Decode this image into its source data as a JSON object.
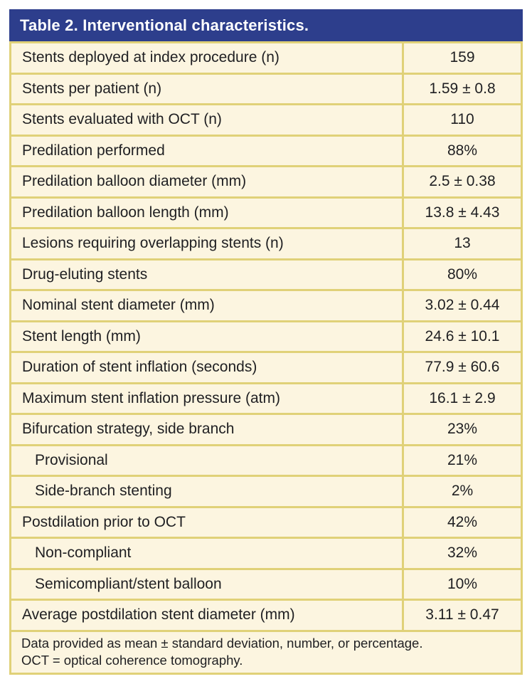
{
  "table": {
    "title": "Table 2. Interventional characteristics.",
    "rows": [
      {
        "label": "Stents deployed at index procedure (n)",
        "value": "159",
        "indent": false
      },
      {
        "label": "Stents per patient (n)",
        "value": "1.59 ± 0.8",
        "indent": false
      },
      {
        "label": "Stents evaluated with OCT (n)",
        "value": "110",
        "indent": false
      },
      {
        "label": "Predilation performed",
        "value": "88%",
        "indent": false
      },
      {
        "label": "Predilation balloon diameter (mm)",
        "value": "2.5 ± 0.38",
        "indent": false
      },
      {
        "label": "Predilation balloon length (mm)",
        "value": "13.8 ± 4.43",
        "indent": false
      },
      {
        "label": "Lesions requiring overlapping stents (n)",
        "value": "13",
        "indent": false
      },
      {
        "label": "Drug-eluting stents",
        "value": "80%",
        "indent": false
      },
      {
        "label": "Nominal stent diameter (mm)",
        "value": "3.02 ± 0.44",
        "indent": false
      },
      {
        "label": "Stent length (mm)",
        "value": "24.6 ± 10.1",
        "indent": false
      },
      {
        "label": "Duration of stent inflation (seconds)",
        "value": "77.9 ± 60.6",
        "indent": false
      },
      {
        "label": "Maximum stent inflation pressure (atm)",
        "value": "16.1 ± 2.9",
        "indent": false
      },
      {
        "label": "Bifurcation strategy, side branch",
        "value": "23%",
        "indent": false
      },
      {
        "label": "Provisional",
        "value": "21%",
        "indent": true
      },
      {
        "label": "Side-branch stenting",
        "value": "2%",
        "indent": true
      },
      {
        "label": "Postdilation prior to OCT",
        "value": "42%",
        "indent": false
      },
      {
        "label": "Non-compliant",
        "value": "32%",
        "indent": true
      },
      {
        "label": "Semicompliant/stent balloon",
        "value": "10%",
        "indent": true
      },
      {
        "label": "Average postdilation stent diameter (mm)",
        "value": "3.11 ± 0.47",
        "indent": false
      }
    ],
    "footnote": [
      "Data provided as mean ± standard deviation, number, or percentage.",
      "OCT = optical coherence tomography."
    ],
    "colors": {
      "header_bg": "#2d3e8c",
      "header_text": "#ffffff",
      "row_bg": "#fcf5e0",
      "border": "#e0d178",
      "text": "#1f1f22"
    }
  }
}
